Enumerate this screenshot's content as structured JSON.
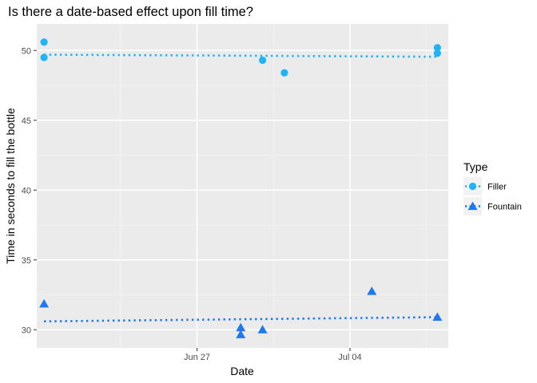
{
  "chart_data": {
    "type": "scatter",
    "title": "Is there a date-based effect upon fill time?",
    "xlabel": "Date",
    "ylabel": "Time in seconds to fill the bottle",
    "x_type": "date",
    "xlim": [
      "2023-06-19T16:00",
      "2023-07-08T12:00"
    ],
    "ylim": [
      28.7,
      51.9
    ],
    "x_ticks": [
      {
        "value": "2023-06-27",
        "label": "Jun 27"
      },
      {
        "value": "2023-07-04",
        "label": "Jul 04"
      }
    ],
    "y_ticks": [
      30,
      35,
      40,
      45,
      50
    ],
    "grid": true,
    "legend": {
      "title": "Type",
      "position": "right"
    },
    "series": [
      {
        "name": "Filler",
        "marker": "circle",
        "color": "#1eb4f5",
        "trend_line": {
          "style": "dotted",
          "start": [
            "2023-06-20",
            49.7
          ],
          "end": [
            "2023-07-08",
            49.55
          ]
        },
        "points": [
          {
            "x": "2023-06-20",
            "y": 50.6
          },
          {
            "x": "2023-06-20",
            "y": 49.5
          },
          {
            "x": "2023-06-30",
            "y": 49.3
          },
          {
            "x": "2023-07-01",
            "y": 48.4
          },
          {
            "x": "2023-07-08",
            "y": 50.2
          },
          {
            "x": "2023-07-08",
            "y": 49.8
          }
        ]
      },
      {
        "name": "Fountain",
        "marker": "triangle",
        "color": "#1e78f0",
        "trend_line": {
          "style": "dotted",
          "start": [
            "2023-06-20",
            30.6
          ],
          "end": [
            "2023-07-08",
            30.9
          ]
        },
        "points": [
          {
            "x": "2023-06-20",
            "y": 31.8
          },
          {
            "x": "2023-06-29",
            "y": 30.1
          },
          {
            "x": "2023-06-29",
            "y": 29.6
          },
          {
            "x": "2023-06-30",
            "y": 29.95
          },
          {
            "x": "2023-07-05",
            "y": 32.7
          },
          {
            "x": "2023-07-08",
            "y": 30.85
          }
        ]
      }
    ]
  }
}
